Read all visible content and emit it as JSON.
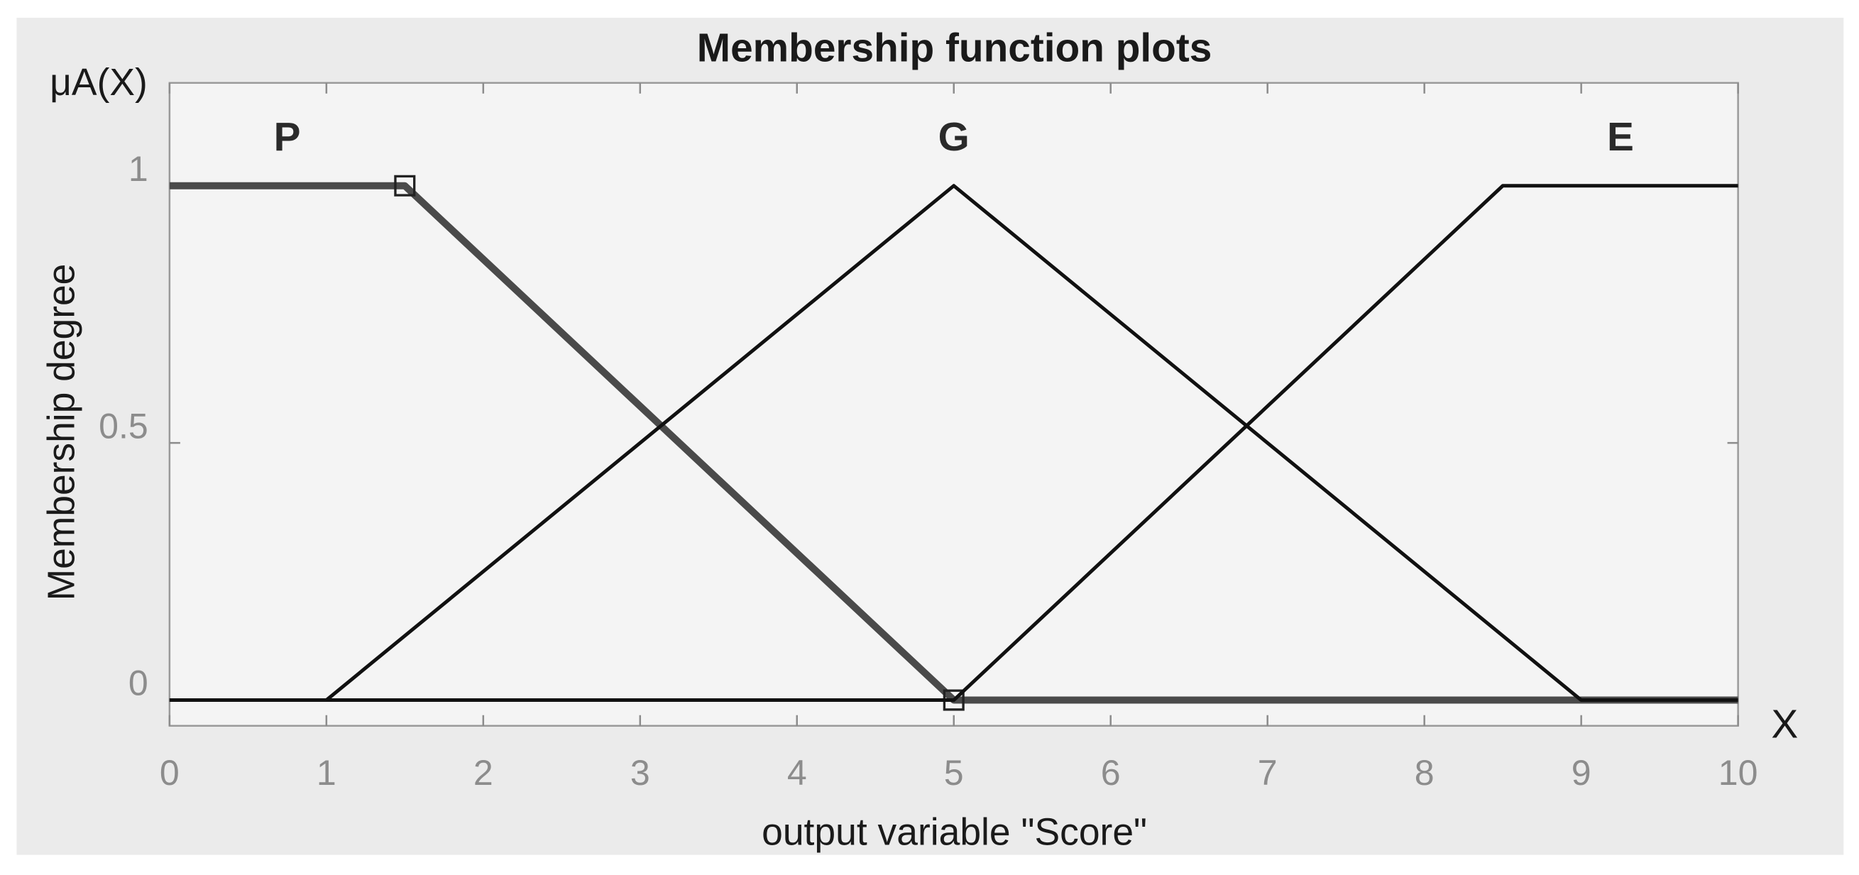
{
  "chart_data": {
    "type": "line",
    "title": "Membership function plots",
    "xlabel": "output variable \"Score\"",
    "ylabel": "Membership degree",
    "annotations": [
      "μA(X)",
      "X"
    ],
    "xlim": [
      0,
      10
    ],
    "xticks": [
      0,
      1,
      2,
      3,
      4,
      5,
      6,
      7,
      8,
      9,
      10
    ],
    "ylim": [
      -0.05,
      1.2
    ],
    "yticks": [
      0,
      0.5,
      1
    ],
    "grid": false,
    "series": [
      {
        "name": "P",
        "color": "#4a4a4a",
        "linewidth": 6,
        "markers": true,
        "x": [
          0,
          1.5,
          5,
          10
        ],
        "values": [
          1,
          1,
          0,
          0
        ]
      },
      {
        "name": "G",
        "color": "#111111",
        "linewidth": 3,
        "markers": false,
        "x": [
          0,
          1,
          5,
          9,
          10
        ],
        "values": [
          0,
          0,
          1,
          0,
          0
        ]
      },
      {
        "name": "E",
        "color": "#111111",
        "linewidth": 3,
        "markers": false,
        "x": [
          0,
          5,
          8.5,
          10
        ],
        "values": [
          0,
          0,
          1,
          1
        ]
      }
    ]
  }
}
